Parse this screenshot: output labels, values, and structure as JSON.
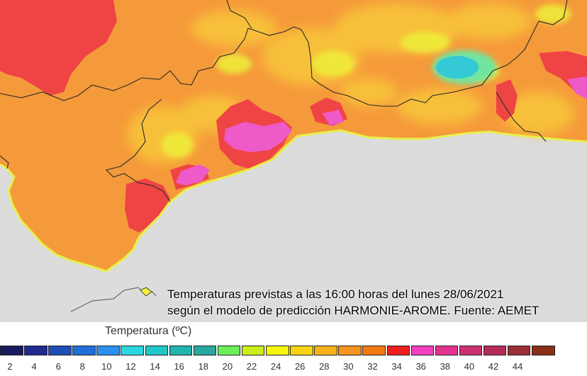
{
  "caption": {
    "line1": "Temperaturas previstas a las 16:00 horas del lunes 28/06/2021",
    "line2": "según el modelo de predicción HARMONIE-AROME. Fuente: AEMET"
  },
  "legend": {
    "title": "Temperatura (ºC)",
    "colors": [
      "#1a1a5e",
      "#1f2b8f",
      "#1f4fb5",
      "#1f6fd6",
      "#2a8fef",
      "#2ad6e0",
      "#20c8c8",
      "#22b5b0",
      "#2aa89f",
      "#6aee5a",
      "#c8f018",
      "#f6f60a",
      "#f8d410",
      "#f7b118",
      "#f59420",
      "#f37a12",
      "#ee1e1e",
      "#f23ec0",
      "#e2348e",
      "#cc3070",
      "#b42d58",
      "#9c2e36",
      "#8a3018"
    ],
    "ticks": [
      "2",
      "4",
      "6",
      "8",
      "10",
      "12",
      "14",
      "16",
      "18",
      "20",
      "22",
      "24",
      "26",
      "28",
      "30",
      "32",
      "34",
      "36",
      "38",
      "40",
      "42",
      "44"
    ]
  },
  "map": {
    "palette": {
      "sea": "#dcdcdc",
      "hot": "#ef4444",
      "warm": "#f59a3a",
      "mild": "#f8c53a",
      "cool": "#eef03a",
      "very_hot": "#ee5ac8",
      "cold_spot": "#35c8d6",
      "border": "#2a2a2a"
    }
  }
}
